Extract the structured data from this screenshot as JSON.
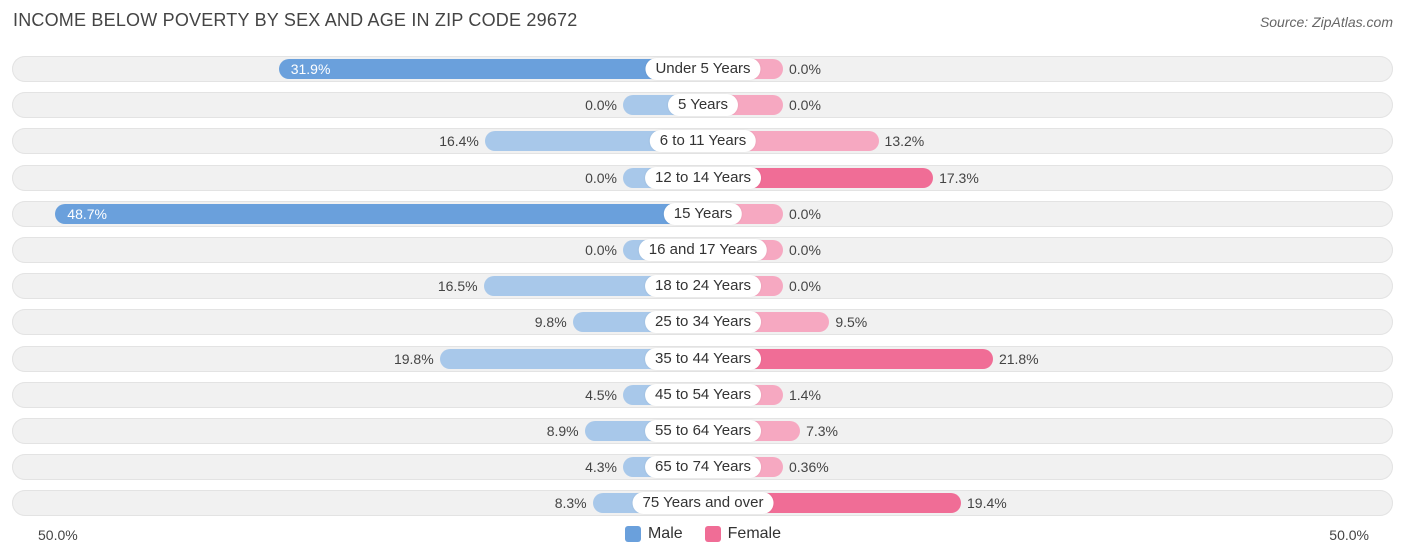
{
  "title": "INCOME BELOW POVERTY BY SEX AND AGE IN ZIP CODE 29672",
  "source": "Source: ZipAtlas.com",
  "axis": {
    "left_label": "50.0%",
    "right_label": "50.0%"
  },
  "legend": [
    {
      "name": "Male",
      "color": "#6aa0dc"
    },
    {
      "name": "Female",
      "color": "#f06d96"
    }
  ],
  "chart_data": {
    "type": "bar",
    "orientation": "horizontal-diverging",
    "title": "INCOME BELOW POVERTY BY SEX AND AGE IN ZIP CODE 29672",
    "xlim": [
      -50,
      50
    ],
    "categories": [
      "Under 5 Years",
      "5 Years",
      "6 to 11 Years",
      "12 to 14 Years",
      "15 Years",
      "16 and 17 Years",
      "18 to 24 Years",
      "25 to 34 Years",
      "35 to 44 Years",
      "45 to 54 Years",
      "55 to 64 Years",
      "65 to 74 Years",
      "75 Years and over"
    ],
    "series": [
      {
        "name": "Male",
        "color": "#6aa0dc",
        "values": [
          31.9,
          0.0,
          16.4,
          0.0,
          48.7,
          0.0,
          16.5,
          9.8,
          19.8,
          4.5,
          8.9,
          4.3,
          8.3
        ],
        "labels": [
          "31.9%",
          "0.0%",
          "16.4%",
          "0.0%",
          "48.7%",
          "0.0%",
          "16.5%",
          "9.8%",
          "19.8%",
          "4.5%",
          "8.9%",
          "4.3%",
          "8.3%"
        ]
      },
      {
        "name": "Female",
        "color": "#f06d96",
        "values": [
          0.0,
          0.0,
          13.2,
          17.3,
          0.0,
          0.0,
          0.0,
          9.5,
          21.8,
          1.4,
          7.3,
          0.36,
          19.4
        ],
        "labels": [
          "0.0%",
          "0.0%",
          "13.2%",
          "17.3%",
          "0.0%",
          "0.0%",
          "0.0%",
          "9.5%",
          "21.8%",
          "1.4%",
          "7.3%",
          "0.36%",
          "19.4%"
        ]
      }
    ],
    "legend_position": "bottom-center"
  }
}
